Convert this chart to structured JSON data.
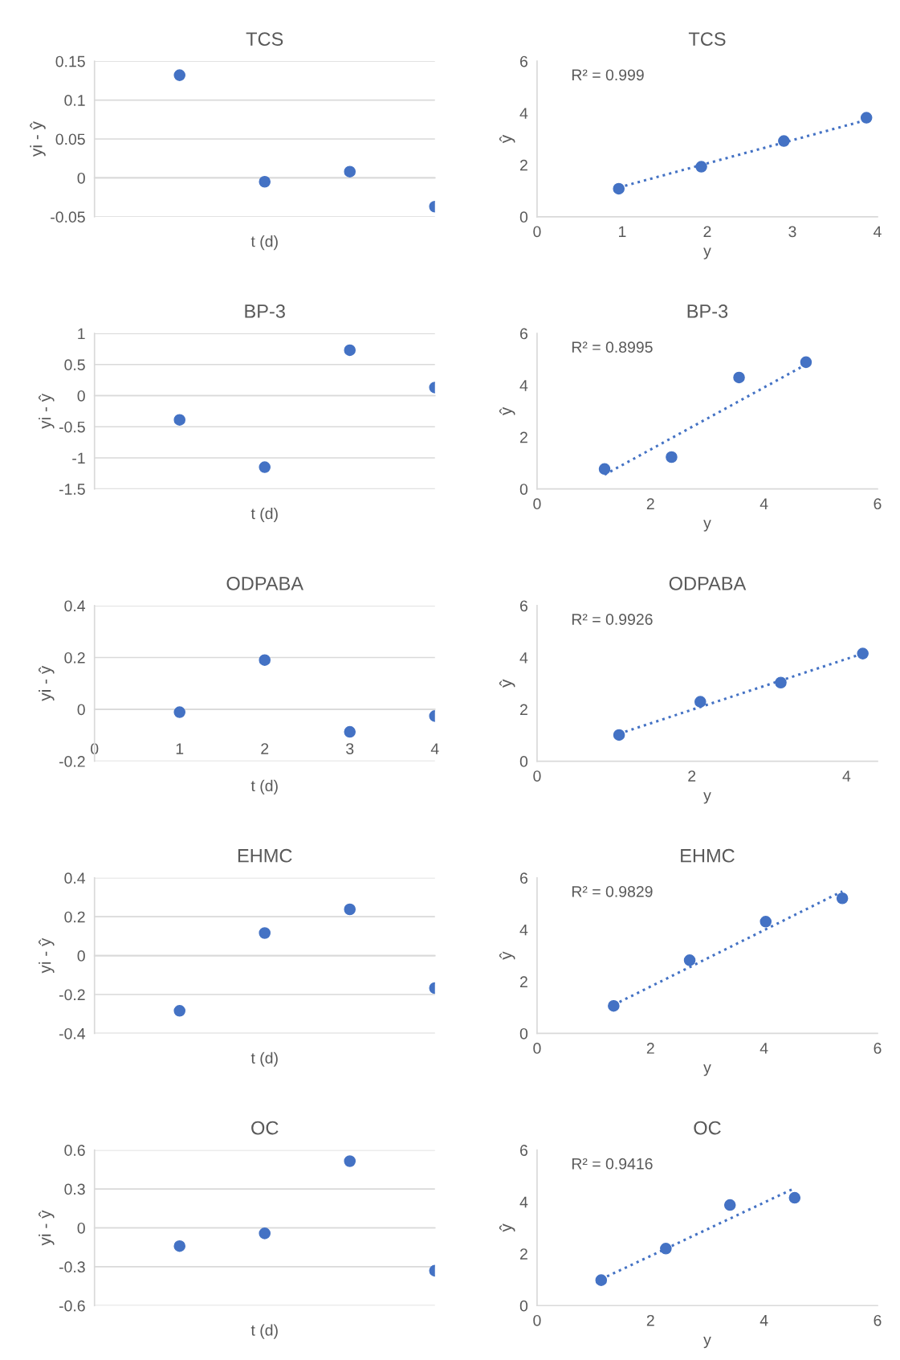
{
  "chart_data": [
    {
      "type": "scatter",
      "title": "TCS",
      "xlabel": "t (d)",
      "ylabel": "yi - ŷ",
      "x": [
        1,
        2,
        3,
        4
      ],
      "xlim": [
        0,
        4
      ],
      "ylim": [
        -0.05,
        0.15
      ],
      "yticks": [
        -0.05,
        0,
        0.05,
        0.1,
        0.15
      ],
      "tick_labels": "y",
      "grid": "y",
      "marker": "circle",
      "series": [
        {
          "color": "#4472c4",
          "values": [
            0.132,
            -0.005,
            0.008,
            -0.037
          ]
        }
      ]
    },
    {
      "type": "scatter",
      "title": "TCS",
      "xlabel": "y",
      "ylabel": "ŷ",
      "xlim": [
        0,
        4
      ],
      "xticks": [
        0,
        1,
        2,
        3,
        4
      ],
      "ylim": [
        0,
        6
      ],
      "yticks": [
        0,
        2,
        4,
        6
      ],
      "annotations": [
        "R² = 0.999"
      ],
      "series": [
        {
          "marker": "circle",
          "color": "#4472c4",
          "x": [
            0.96,
            1.93,
            2.9,
            3.87
          ],
          "values": [
            1.08,
            1.93,
            2.92,
            3.82
          ]
        },
        {
          "type": "line",
          "line_style": "dotted",
          "color": "#4472c4",
          "x": [
            0.96,
            3.87
          ],
          "values": [
            1.13,
            3.73
          ]
        }
      ]
    },
    {
      "type": "scatter",
      "title": "BP-3",
      "xlabel": "t (d)",
      "ylabel": "yi - ŷ",
      "x": [
        1,
        2,
        3,
        4
      ],
      "xlim": [
        0,
        4
      ],
      "ylim": [
        -1.5,
        1
      ],
      "yticks": [
        -1.5,
        -1,
        -0.5,
        0,
        0.5,
        1
      ],
      "tick_labels": "y",
      "grid": "y",
      "marker": "circle",
      "series": [
        {
          "color": "#4472c4",
          "values": [
            -0.39,
            -1.15,
            0.73,
            0.13
          ]
        }
      ]
    },
    {
      "type": "scatter",
      "title": "BP-3",
      "xlabel": "y",
      "ylabel": "ŷ",
      "xlim": [
        0,
        6
      ],
      "xticks": [
        0,
        2,
        4,
        6
      ],
      "ylim": [
        0,
        6
      ],
      "yticks": [
        0,
        2,
        4,
        6
      ],
      "annotations": [
        "R² = 0.8995"
      ],
      "series": [
        {
          "marker": "circle",
          "color": "#4472c4",
          "x": [
            1.19,
            2.37,
            3.56,
            4.74
          ],
          "values": [
            0.77,
            1.23,
            4.3,
            4.89
          ]
        },
        {
          "type": "line",
          "line_style": "dotted",
          "color": "#4472c4",
          "x": [
            1.19,
            4.74
          ],
          "values": [
            0.55,
            4.8
          ]
        }
      ]
    },
    {
      "type": "scatter",
      "title": "ODPABA",
      "xlabel": "t (d)",
      "ylabel": "yi - ŷ",
      "x": [
        1,
        2,
        3,
        4
      ],
      "xlim": [
        0,
        4
      ],
      "xticks": [
        0,
        1,
        2,
        3,
        4
      ],
      "ylim": [
        -0.2,
        0.4
      ],
      "yticks": [
        -0.2,
        0,
        0.2,
        0.4
      ],
      "grid": "y",
      "marker": "circle",
      "series": [
        {
          "color": "#4472c4",
          "values": [
            -0.011,
            0.19,
            -0.087,
            -0.026
          ]
        }
      ]
    },
    {
      "type": "scatter",
      "title": "ODPABA",
      "xlabel": "y",
      "ylabel": "ŷ",
      "xlim": [
        0,
        4.4
      ],
      "xticks": [
        0,
        2,
        4
      ],
      "ylim": [
        0,
        6
      ],
      "yticks": [
        0,
        2,
        4,
        6
      ],
      "annotations": [
        "R² = 0.9926"
      ],
      "series": [
        {
          "marker": "circle",
          "color": "#4472c4",
          "x": [
            1.06,
            2.11,
            3.15,
            4.21
          ],
          "values": [
            1.01,
            2.29,
            3.03,
            4.15
          ]
        },
        {
          "type": "line",
          "line_style": "dotted",
          "color": "#4472c4",
          "x": [
            1.06,
            4.21
          ],
          "values": [
            1.06,
            4.15
          ]
        }
      ]
    },
    {
      "type": "scatter",
      "title": "EHMC",
      "xlabel": "t (d)",
      "ylabel": "yi - ŷ",
      "x": [
        1,
        2,
        3,
        4
      ],
      "xlim": [
        0,
        4
      ],
      "ylim": [
        -0.4,
        0.4
      ],
      "yticks": [
        -0.4,
        -0.2,
        0,
        0.2,
        0.4
      ],
      "tick_labels": "y",
      "grid": "y",
      "marker": "circle",
      "series": [
        {
          "color": "#4472c4",
          "values": [
            -0.284,
            0.116,
            0.238,
            -0.167
          ]
        }
      ]
    },
    {
      "type": "scatter",
      "title": "EHMC",
      "xlabel": "y",
      "ylabel": "ŷ",
      "xlim": [
        0,
        6
      ],
      "xticks": [
        0,
        2,
        4,
        6
      ],
      "ylim": [
        0,
        6
      ],
      "yticks": [
        0,
        2,
        4,
        6
      ],
      "annotations": [
        "R² = 0.9829"
      ],
      "series": [
        {
          "marker": "circle",
          "color": "#4472c4",
          "x": [
            1.35,
            2.69,
            4.03,
            5.38
          ],
          "values": [
            1.06,
            2.82,
            4.31,
            5.21
          ]
        },
        {
          "type": "line",
          "line_style": "dotted",
          "color": "#4472c4",
          "x": [
            1.35,
            5.38
          ],
          "values": [
            1.1,
            5.48
          ]
        }
      ]
    },
    {
      "type": "scatter",
      "title": "OC",
      "xlabel": "t (d)",
      "ylabel": "yi - ŷ",
      "x": [
        1,
        2,
        3,
        4
      ],
      "xlim": [
        0,
        4
      ],
      "ylim": [
        -0.6,
        0.6
      ],
      "yticks": [
        -0.6,
        -0.3,
        0,
        0.3,
        0.6
      ],
      "tick_labels": "y",
      "grid": "y",
      "marker": "circle",
      "series": [
        {
          "color": "#4472c4",
          "values": [
            -0.141,
            -0.043,
            0.514,
            -0.331
          ]
        }
      ]
    },
    {
      "type": "scatter",
      "title": "OC",
      "xlabel": "y",
      "ylabel": "ŷ",
      "xlim": [
        0,
        6
      ],
      "xticks": [
        0,
        2,
        4,
        6
      ],
      "ylim": [
        0,
        6
      ],
      "yticks": [
        0,
        2,
        4,
        6
      ],
      "annotations": [
        "R² = 0.9416"
      ],
      "series": [
        {
          "marker": "circle",
          "color": "#4472c4",
          "x": [
            1.13,
            2.27,
            3.4,
            4.54
          ],
          "values": [
            0.98,
            2.2,
            3.88,
            4.16
          ]
        },
        {
          "type": "line",
          "line_style": "dotted",
          "color": "#4472c4",
          "x": [
            1.13,
            4.54
          ],
          "values": [
            1.02,
            4.53
          ]
        }
      ]
    }
  ]
}
